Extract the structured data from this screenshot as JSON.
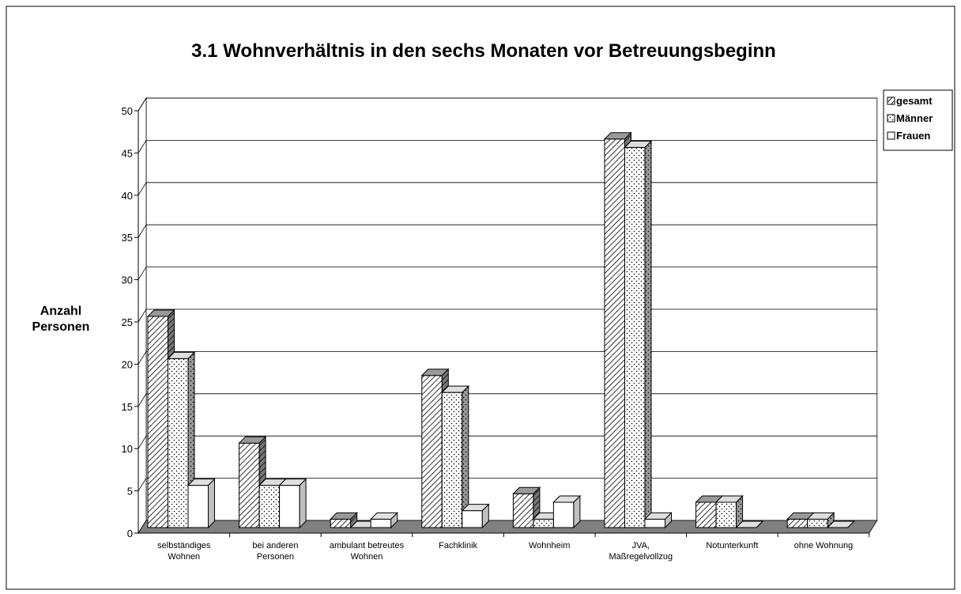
{
  "chart_data": {
    "type": "bar3d",
    "title": "3.1 Wohnverhältnis in den sechs Monaten vor Betreuungsbeginn",
    "y_label": "Anzahl Personen",
    "categories": [
      "selbständiges Wohnen",
      "bei anderen Personen",
      "ambulant betreutes Wohnen",
      "Fachklinik",
      "Wohnheim",
      "JVA, Maßregelvollzug",
      "Notunterkunft",
      "ohne Wohnung"
    ],
    "series": [
      {
        "name": "gesamt",
        "color": "#ffffff",
        "pattern": "hatch",
        "values": [
          25,
          10,
          1,
          18,
          4,
          46,
          3,
          1
        ]
      },
      {
        "name": "Männer",
        "color": "#ffffff",
        "pattern": "dots",
        "values": [
          20,
          5,
          0,
          16,
          1,
          45,
          3,
          1
        ]
      },
      {
        "name": "Frauen",
        "color": "#ffffff",
        "pattern": "none",
        "values": [
          5,
          5,
          1,
          2,
          3,
          1,
          0,
          0
        ]
      }
    ],
    "ylim": [
      0,
      50
    ],
    "yticks": [
      0,
      5,
      10,
      15,
      20,
      25,
      30,
      35,
      40,
      45,
      50
    ],
    "grid": true,
    "legend": "top-right"
  }
}
